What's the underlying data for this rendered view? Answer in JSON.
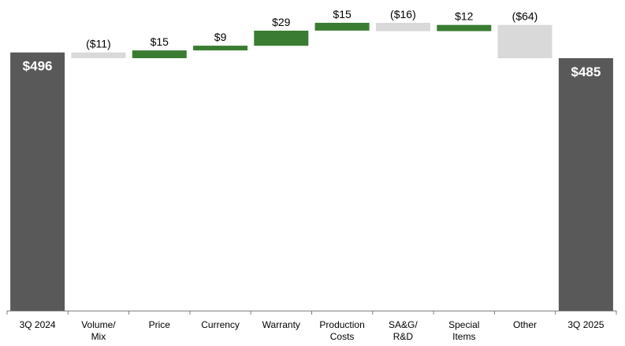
{
  "chart_data": {
    "type": "bar",
    "subtype": "waterfall",
    "categories": [
      [
        "3Q 2024"
      ],
      [
        "Volume/",
        "Mix"
      ],
      [
        "Price"
      ],
      [
        "Currency"
      ],
      [
        "Warranty"
      ],
      [
        "Production",
        "Costs"
      ],
      [
        "SA&G/",
        "R&D"
      ],
      [
        "Special",
        "Items"
      ],
      [
        "Other"
      ],
      [
        "3Q 2025"
      ]
    ],
    "values": [
      496,
      -11,
      15,
      9,
      29,
      15,
      -16,
      12,
      -64,
      485
    ],
    "kinds": [
      "total",
      "delta",
      "delta",
      "delta",
      "delta",
      "delta",
      "delta",
      "delta",
      "delta",
      "total"
    ],
    "data_labels": [
      "$496",
      "($11)",
      "$15",
      "$9",
      "$29",
      "$15",
      "($16)",
      "$12",
      "($64)",
      "$485"
    ],
    "ylim": [
      0,
      550
    ],
    "grid": false,
    "colors": {
      "total": "#595959",
      "increase": "#3a7d32",
      "decrease": "#d9d9d9",
      "axis": "#7f7f7f"
    }
  }
}
